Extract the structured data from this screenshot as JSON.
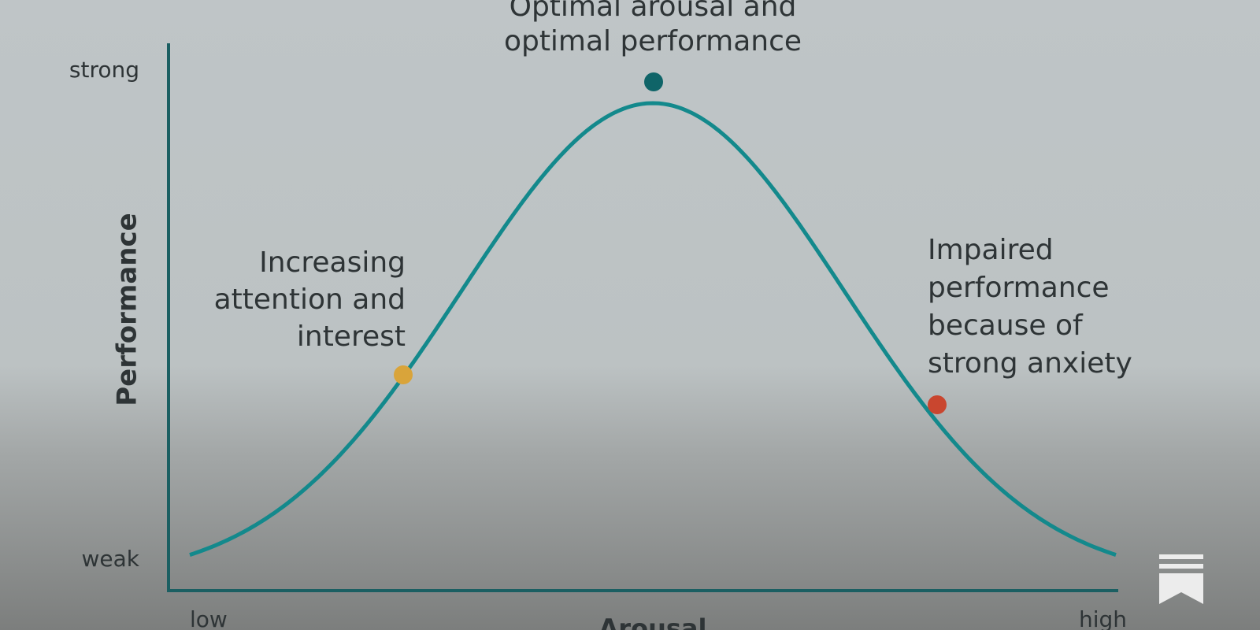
{
  "diagram": {
    "top_label": [
      "Optimal arousal and",
      "optimal performance"
    ],
    "y_axis": {
      "title": "Performance",
      "top": "strong",
      "bottom": "weak"
    },
    "x_axis": {
      "title": "Arousal",
      "left": "low",
      "right": "high"
    },
    "left_note": [
      "Increasing",
      "attention and",
      "interest"
    ],
    "right_note": [
      "Impaired",
      "performance",
      "because of",
      "strong anxiety"
    ]
  }
}
